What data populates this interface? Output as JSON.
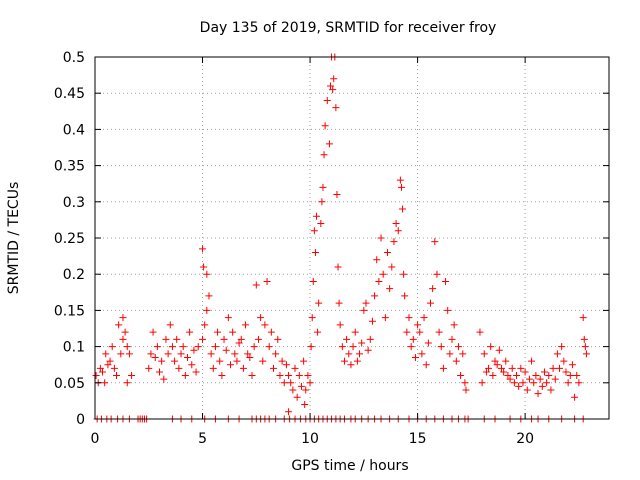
{
  "chart_data": {
    "type": "scatter",
    "title": "Day 135 of 2019, SRMTID for receiver froy",
    "xlabel": "GPS time / hours",
    "ylabel": "SRMTID / TECUs",
    "xlim": [
      0,
      23.9
    ],
    "ylim": [
      0,
      0.5
    ],
    "xticks": [
      0,
      5,
      10,
      15,
      20
    ],
    "xtick_labels": [
      "0",
      "5",
      "10",
      "15",
      "20"
    ],
    "yticks": [
      0,
      0.05,
      0.1,
      0.15,
      0.2,
      0.25,
      0.3,
      0.35,
      0.4,
      0.45,
      0.5
    ],
    "ytick_labels": [
      "0",
      "0.05",
      "0.1",
      "0.15",
      "0.2",
      "0.25",
      "0.3",
      "0.35",
      "0.4",
      "0.45",
      "0.5"
    ],
    "grid": true,
    "marker": "+",
    "series": [
      {
        "name": "SRMTID",
        "color": "#ff0000",
        "points": [
          [
            0.05,
            0.06
          ],
          [
            0.15,
            0.05
          ],
          [
            0.25,
            0.07
          ],
          [
            0.35,
            0.065
          ],
          [
            0.45,
            0.05
          ],
          [
            0.5,
            0.09
          ],
          [
            0.6,
            0.075
          ],
          [
            0.7,
            0.08
          ],
          [
            0.8,
            0.1
          ],
          [
            0.9,
            0.07
          ],
          [
            1.0,
            0.06
          ],
          [
            1.1,
            0.13
          ],
          [
            1.2,
            0.09
          ],
          [
            1.3,
            0.11
          ],
          [
            1.4,
            0.12
          ],
          [
            1.5,
            0.1
          ],
          [
            1.6,
            0.09
          ],
          [
            1.7,
            0.06
          ],
          [
            1.3,
            0.14
          ],
          [
            1.5,
            0.05
          ],
          [
            2.5,
            0.07
          ],
          [
            2.6,
            0.09
          ],
          [
            2.7,
            0.12
          ],
          [
            2.8,
            0.085
          ],
          [
            2.9,
            0.1
          ],
          [
            3.0,
            0.065
          ],
          [
            3.1,
            0.08
          ],
          [
            3.2,
            0.055
          ],
          [
            3.3,
            0.11
          ],
          [
            3.4,
            0.09
          ],
          [
            3.5,
            0.13
          ],
          [
            3.6,
            0.1
          ],
          [
            3.7,
            0.08
          ],
          [
            3.8,
            0.11
          ],
          [
            3.9,
            0.07
          ],
          [
            4.0,
            0.09
          ],
          [
            4.1,
            0.1
          ],
          [
            4.2,
            0.06
          ],
          [
            4.3,
            0.085
          ],
          [
            4.4,
            0.12
          ],
          [
            4.5,
            0.075
          ],
          [
            4.6,
            0.095
          ],
          [
            4.7,
            0.065
          ],
          [
            4.8,
            0.1
          ],
          [
            5.0,
            0.235
          ],
          [
            5.05,
            0.21
          ],
          [
            5.2,
            0.2
          ],
          [
            5.2,
            0.15
          ],
          [
            5.3,
            0.17
          ],
          [
            5.1,
            0.13
          ],
          [
            5.0,
            0.11
          ],
          [
            5.4,
            0.09
          ],
          [
            5.5,
            0.07
          ],
          [
            5.6,
            0.1
          ],
          [
            5.7,
            0.12
          ],
          [
            5.8,
            0.08
          ],
          [
            5.9,
            0.06
          ],
          [
            6.0,
            0.11
          ],
          [
            6.1,
            0.095
          ],
          [
            6.2,
            0.14
          ],
          [
            6.3,
            0.075
          ],
          [
            6.4,
            0.12
          ],
          [
            6.5,
            0.09
          ],
          [
            6.6,
            0.08
          ],
          [
            6.7,
            0.105
          ],
          [
            6.8,
            0.11
          ],
          [
            6.9,
            0.07
          ],
          [
            7.0,
            0.13
          ],
          [
            7.1,
            0.09
          ],
          [
            7.2,
            0.085
          ],
          [
            7.3,
            0.06
          ],
          [
            7.4,
            0.1
          ],
          [
            7.5,
            0.185
          ],
          [
            8.0,
            0.19
          ],
          [
            7.6,
            0.11
          ],
          [
            7.7,
            0.14
          ],
          [
            7.8,
            0.08
          ],
          [
            7.9,
            0.13
          ],
          [
            8.1,
            0.1
          ],
          [
            8.2,
            0.12
          ],
          [
            8.3,
            0.07
          ],
          [
            8.4,
            0.09
          ],
          [
            8.5,
            0.11
          ],
          [
            8.6,
            0.06
          ],
          [
            8.7,
            0.08
          ],
          [
            8.8,
            0.05
          ],
          [
            8.9,
            0.075
          ],
          [
            9.0,
            0.06
          ],
          [
            9.1,
            0.05
          ],
          [
            9.2,
            0.04
          ],
          [
            9.3,
            0.07
          ],
          [
            9.4,
            0.03
          ],
          [
            9.5,
            0.06
          ],
          [
            9.6,
            0.045
          ],
          [
            9.7,
            0.08
          ],
          [
            9.8,
            0.04
          ],
          [
            9.9,
            0.06
          ],
          [
            10.0,
            0.05
          ],
          [
            9.75,
            0.02
          ],
          [
            9.0,
            0.01
          ],
          [
            10.05,
            0.1
          ],
          [
            10.1,
            0.14
          ],
          [
            10.15,
            0.19
          ],
          [
            10.2,
            0.26
          ],
          [
            10.25,
            0.23
          ],
          [
            10.3,
            0.28
          ],
          [
            10.35,
            0.12
          ],
          [
            10.4,
            0.16
          ],
          [
            10.5,
            0.27
          ],
          [
            10.55,
            0.3
          ],
          [
            10.6,
            0.32
          ],
          [
            10.65,
            0.365
          ],
          [
            10.7,
            0.405
          ],
          [
            10.8,
            0.44
          ],
          [
            10.9,
            0.38
          ],
          [
            10.95,
            0.46
          ],
          [
            11.0,
            0.5
          ],
          [
            11.05,
            0.455
          ],
          [
            11.1,
            0.47
          ],
          [
            11.15,
            0.5
          ],
          [
            11.2,
            0.43
          ],
          [
            11.25,
            0.31
          ],
          [
            11.3,
            0.21
          ],
          [
            11.35,
            0.16
          ],
          [
            11.4,
            0.13
          ],
          [
            11.5,
            0.1
          ],
          [
            11.6,
            0.08
          ],
          [
            11.7,
            0.11
          ],
          [
            11.8,
            0.09
          ],
          [
            11.9,
            0.075
          ],
          [
            12.0,
            0.1
          ],
          [
            12.1,
            0.12
          ],
          [
            12.2,
            0.08
          ],
          [
            12.3,
            0.09
          ],
          [
            12.4,
            0.105
          ],
          [
            12.5,
            0.15
          ],
          [
            12.6,
            0.16
          ],
          [
            12.7,
            0.095
          ],
          [
            12.8,
            0.11
          ],
          [
            12.9,
            0.135
          ],
          [
            13.0,
            0.17
          ],
          [
            13.1,
            0.22
          ],
          [
            13.2,
            0.19
          ],
          [
            13.3,
            0.25
          ],
          [
            13.4,
            0.2
          ],
          [
            13.5,
            0.14
          ],
          [
            13.6,
            0.23
          ],
          [
            13.7,
            0.18
          ],
          [
            13.8,
            0.21
          ],
          [
            13.9,
            0.245
          ],
          [
            14.0,
            0.27
          ],
          [
            14.1,
            0.26
          ],
          [
            14.2,
            0.33
          ],
          [
            14.25,
            0.32
          ],
          [
            14.3,
            0.29
          ],
          [
            14.35,
            0.2
          ],
          [
            14.4,
            0.17
          ],
          [
            14.5,
            0.12
          ],
          [
            14.6,
            0.14
          ],
          [
            14.7,
            0.1
          ],
          [
            14.8,
            0.11
          ],
          [
            14.9,
            0.085
          ],
          [
            15.0,
            0.13
          ],
          [
            15.1,
            0.12
          ],
          [
            15.2,
            0.09
          ],
          [
            15.3,
            0.14
          ],
          [
            15.4,
            0.075
          ],
          [
            15.5,
            0.105
          ],
          [
            15.6,
            0.16
          ],
          [
            15.7,
            0.18
          ],
          [
            15.8,
            0.245
          ],
          [
            15.9,
            0.2
          ],
          [
            16.0,
            0.12
          ],
          [
            16.1,
            0.1
          ],
          [
            16.2,
            0.07
          ],
          [
            16.3,
            0.19
          ],
          [
            16.4,
            0.15
          ],
          [
            16.5,
            0.09
          ],
          [
            16.6,
            0.11
          ],
          [
            16.7,
            0.13
          ],
          [
            16.8,
            0.08
          ],
          [
            16.9,
            0.1
          ],
          [
            17.0,
            0.06
          ],
          [
            17.1,
            0.09
          ],
          [
            17.2,
            0.05
          ],
          [
            17.25,
            0.04
          ],
          [
            17.9,
            0.12
          ],
          [
            18.0,
            0.05
          ],
          [
            18.1,
            0.09
          ],
          [
            18.2,
            0.065
          ],
          [
            18.3,
            0.07
          ],
          [
            18.4,
            0.1
          ],
          [
            18.5,
            0.06
          ],
          [
            18.6,
            0.08
          ],
          [
            18.7,
            0.075
          ],
          [
            18.8,
            0.095
          ],
          [
            18.9,
            0.07
          ],
          [
            19.0,
            0.065
          ],
          [
            19.1,
            0.08
          ],
          [
            19.2,
            0.06
          ],
          [
            19.3,
            0.055
          ],
          [
            19.4,
            0.07
          ],
          [
            19.5,
            0.05
          ],
          [
            19.6,
            0.06
          ],
          [
            19.7,
            0.045
          ],
          [
            19.8,
            0.07
          ],
          [
            19.9,
            0.05
          ],
          [
            20.0,
            0.065
          ],
          [
            20.1,
            0.04
          ],
          [
            20.2,
            0.055
          ],
          [
            20.3,
            0.08
          ],
          [
            20.4,
            0.05
          ],
          [
            20.5,
            0.06
          ],
          [
            20.6,
            0.035
          ],
          [
            20.7,
            0.055
          ],
          [
            20.8,
            0.045
          ],
          [
            20.9,
            0.065
          ],
          [
            21.0,
            0.05
          ],
          [
            21.1,
            0.06
          ],
          [
            21.2,
            0.04
          ],
          [
            21.3,
            0.07
          ],
          [
            21.4,
            0.055
          ],
          [
            21.5,
            0.09
          ],
          [
            21.6,
            0.07
          ],
          [
            21.7,
            0.1
          ],
          [
            21.8,
            0.08
          ],
          [
            21.9,
            0.065
          ],
          [
            22.0,
            0.05
          ],
          [
            22.1,
            0.06
          ],
          [
            22.2,
            0.075
          ],
          [
            22.3,
            0.03
          ],
          [
            22.4,
            0.06
          ],
          [
            22.5,
            0.05
          ],
          [
            22.7,
            0.14
          ],
          [
            22.75,
            0.11
          ],
          [
            22.8,
            0.1
          ],
          [
            22.85,
            0.09
          ],
          [
            0.1,
            0
          ],
          [
            0.3,
            0
          ],
          [
            0.55,
            0
          ],
          [
            0.75,
            0
          ],
          [
            1.05,
            0
          ],
          [
            1.3,
            0
          ],
          [
            1.6,
            0
          ],
          [
            2.0,
            0
          ],
          [
            2.1,
            0
          ],
          [
            2.2,
            0
          ],
          [
            2.3,
            0
          ],
          [
            2.4,
            0
          ],
          [
            3.6,
            0
          ],
          [
            4.0,
            0
          ],
          [
            4.5,
            0
          ],
          [
            5.1,
            0
          ],
          [
            5.6,
            0
          ],
          [
            6.2,
            0
          ],
          [
            6.7,
            0
          ],
          [
            7.3,
            0
          ],
          [
            7.5,
            0
          ],
          [
            7.7,
            0
          ],
          [
            7.9,
            0
          ],
          [
            8.1,
            0
          ],
          [
            8.4,
            0
          ],
          [
            8.8,
            0
          ],
          [
            9.05,
            0
          ],
          [
            9.3,
            0
          ],
          [
            9.55,
            0
          ],
          [
            9.8,
            0
          ],
          [
            10.0,
            0
          ],
          [
            10.2,
            0
          ],
          [
            10.4,
            0
          ],
          [
            10.6,
            0
          ],
          [
            10.8,
            0
          ],
          [
            11.0,
            0
          ],
          [
            11.2,
            0
          ],
          [
            11.4,
            0
          ],
          [
            11.6,
            0
          ],
          [
            11.9,
            0
          ],
          [
            12.1,
            0
          ],
          [
            12.4,
            0
          ],
          [
            12.7,
            0
          ],
          [
            13.0,
            0
          ],
          [
            13.3,
            0
          ],
          [
            13.7,
            0
          ],
          [
            14.1,
            0
          ],
          [
            14.6,
            0
          ],
          [
            15.0,
            0
          ],
          [
            15.4,
            0
          ],
          [
            15.8,
            0
          ],
          [
            16.2,
            0
          ],
          [
            16.6,
            0
          ],
          [
            16.9,
            0
          ],
          [
            17.2,
            0
          ],
          [
            17.35,
            0
          ],
          [
            18.1,
            0
          ],
          [
            18.6,
            0
          ],
          [
            19.3,
            0
          ],
          [
            19.8,
            0
          ],
          [
            20.3,
            0
          ],
          [
            20.6,
            0
          ],
          [
            21.1,
            0
          ],
          [
            21.7,
            0
          ],
          [
            22.3,
            0
          ],
          [
            22.7,
            0
          ]
        ]
      }
    ]
  }
}
